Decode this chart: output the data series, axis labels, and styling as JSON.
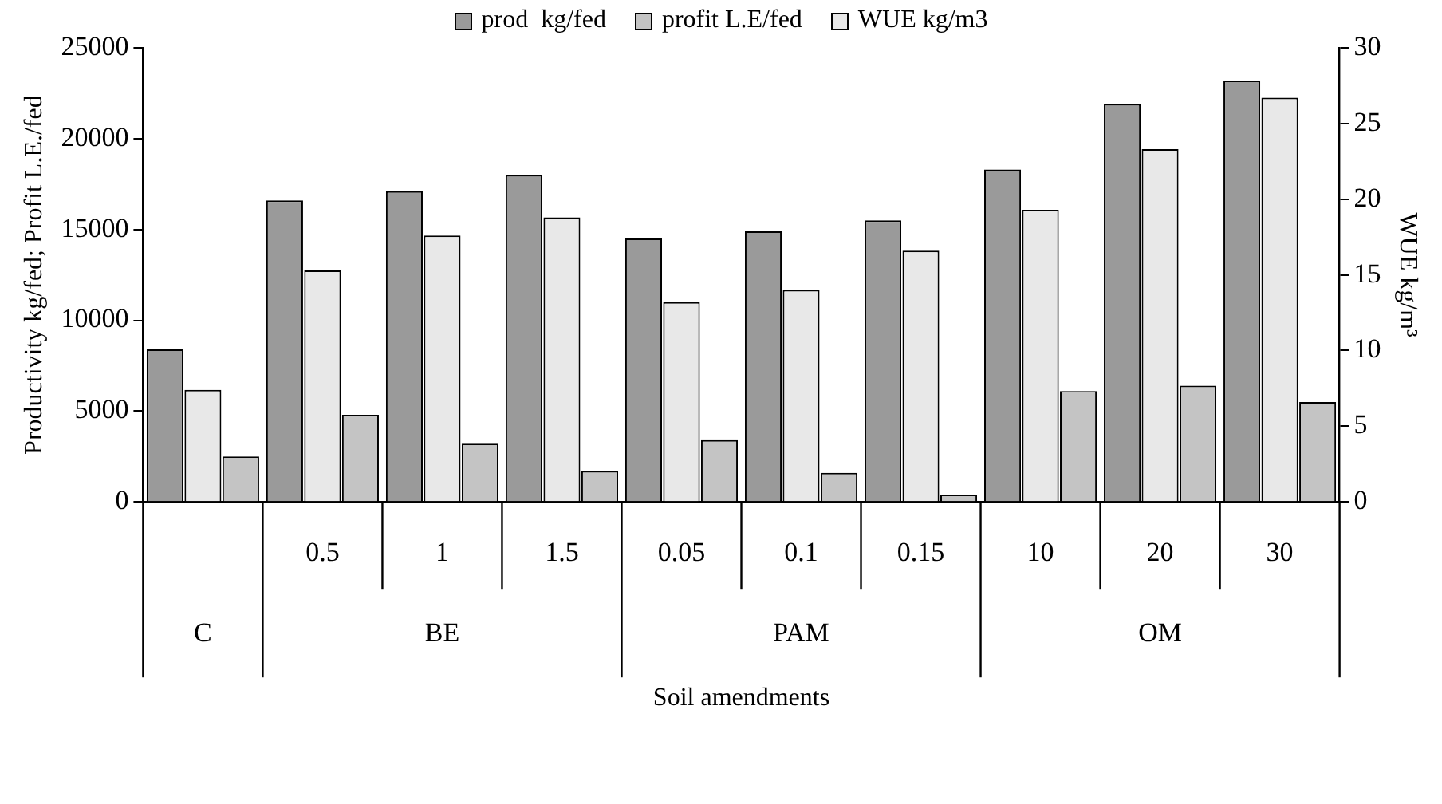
{
  "chart_data": {
    "type": "bar",
    "xlabel": "Soil amendments",
    "ylabel": "Productivity kg/fed; Profit L.E./fed",
    "y2label": "WUE kg/m³",
    "categories": [
      null,
      "0.5",
      "1",
      "1.5",
      "0.05",
      "0.1",
      "0.15",
      "10",
      "20",
      "30"
    ],
    "series": [
      {
        "name": "prod  kg/fed",
        "color": "#9a9a9a",
        "values": [
          8400,
          16600,
          17100,
          18000,
          14500,
          14900,
          15500,
          18300,
          21900,
          23200
        ]
      },
      {
        "name": "profit L.E/fed",
        "color": "#c4c4c4",
        "values": [
          2500,
          4800,
          3200,
          1700,
          3400,
          1600,
          400,
          6100,
          6400,
          5500
        ]
      },
      {
        "name": "WUE kg/m3",
        "color": "#e8e8e8",
        "axis": "y2",
        "values": [
          7.4,
          15.3,
          17.6,
          18.8,
          13.2,
          14.0,
          16.6,
          19.3,
          23.3,
          26.7
        ]
      }
    ],
    "ylim": [
      0,
      25000
    ],
    "yticks": [
      0,
      5000,
      10000,
      15000,
      20000,
      25000
    ],
    "y2lim": [
      0,
      30
    ],
    "y2ticks": [
      0,
      5,
      10,
      15,
      20,
      25,
      30
    ],
    "annotations": [
      "C",
      "BE",
      "PAM",
      "OM"
    ],
    "legend": "top",
    "grid": false
  }
}
